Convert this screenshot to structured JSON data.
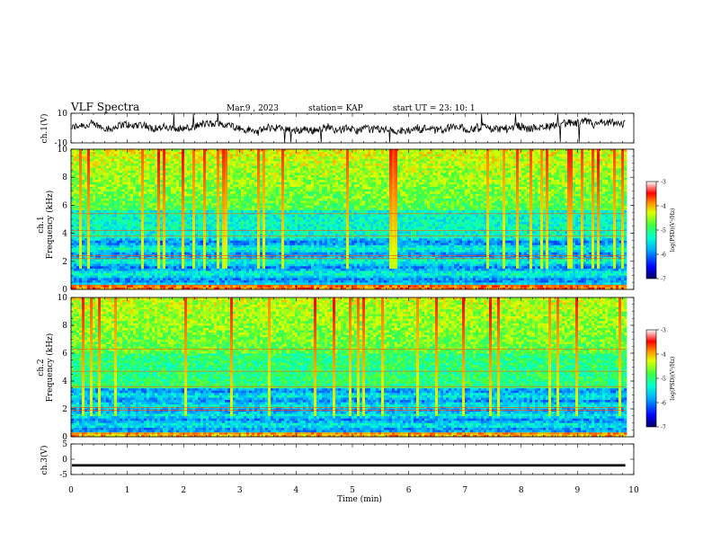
{
  "header": {
    "title": "VLF Spectra",
    "date": "Mar.9  , 2023",
    "station": "station= KAP",
    "start": "start  UT  =   23: 10: 1"
  },
  "colors": {
    "trace": "#000000",
    "colorbar": [
      "#000070",
      "#0000ff",
      "#00a0ff",
      "#00ffff",
      "#00ff80",
      "#40ff00",
      "#ffff00",
      "#ff8000",
      "#ff0000",
      "#ffffff"
    ]
  },
  "chart_data": [
    {
      "type": "line",
      "ylabel": "ch.1(V)",
      "ylim": [
        -10,
        10
      ],
      "y_ticks": [
        "10",
        "-10"
      ],
      "xlim": [
        0,
        10
      ],
      "description_level": "noisy waveform around mean",
      "mean": 0,
      "amplitude": 4
    },
    {
      "type": "heatmap",
      "ylabel_channel": "ch.1",
      "ylabel": "Frequency (kHz)",
      "ylim": [
        0,
        10
      ],
      "y_ticks": [
        "0",
        "2",
        "4",
        "6",
        "8",
        "10"
      ],
      "xlim": [
        0,
        10
      ],
      "colorbar_label": "log(PSD)(V²/Hz)",
      "colorbar_ticks": [
        "-3",
        "-4",
        "-5",
        "-6",
        "-7"
      ],
      "colorbar_range": [
        -7,
        -3
      ]
    },
    {
      "type": "heatmap",
      "ylabel_channel": "ch.2",
      "ylabel": "Frequency (kHz)",
      "ylim": [
        0,
        10
      ],
      "y_ticks": [
        "0",
        "2",
        "4",
        "6",
        "8",
        "10"
      ],
      "xlim": [
        0,
        10
      ],
      "colorbar_label": "log(PSD)(V²/Hz)",
      "colorbar_ticks": [
        "-3",
        "-4",
        "-5",
        "-6",
        "-7"
      ],
      "colorbar_range": [
        -7,
        -3
      ]
    },
    {
      "type": "line",
      "ylabel": "ch.3(V)",
      "ylim": [
        -5,
        5
      ],
      "y_ticks": [
        "5",
        "0",
        "-5"
      ],
      "xlim": [
        0,
        10
      ],
      "mean": -2,
      "amplitude": 0.4
    }
  ],
  "x_axis": {
    "label": "Time (min)",
    "ticks": [
      "0",
      "1",
      "2",
      "3",
      "4",
      "5",
      "6",
      "7",
      "8",
      "9",
      "10"
    ],
    "range": [
      0,
      10
    ]
  }
}
